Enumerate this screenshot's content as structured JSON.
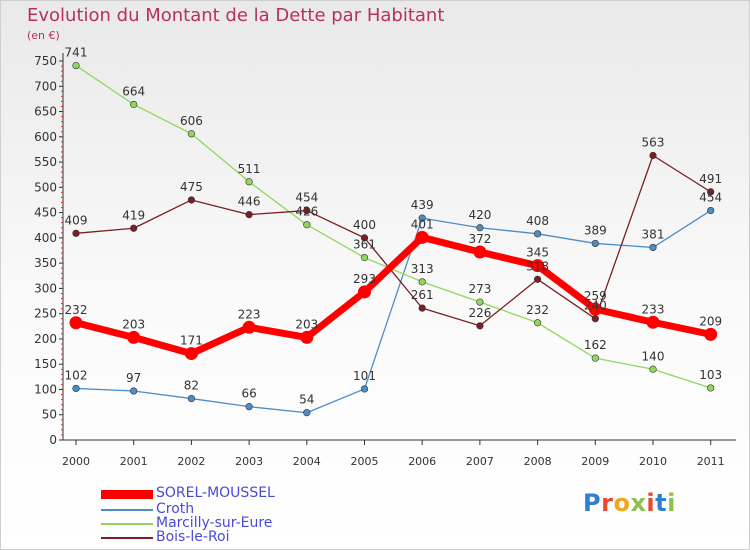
{
  "title": "Evolution du Montant de la Dette par Habitant",
  "unit": "(en €)",
  "brand": "Proxiti",
  "chart_data": {
    "type": "line",
    "categories": [
      "2000",
      "2001",
      "2002",
      "2003",
      "2004",
      "2005",
      "2006",
      "2007",
      "2008",
      "2009",
      "2010",
      "2011"
    ],
    "y_ticks": [
      0,
      50,
      100,
      150,
      200,
      250,
      300,
      350,
      400,
      450,
      500,
      550,
      600,
      650,
      700,
      750
    ],
    "ylim": [
      0,
      750
    ],
    "grid": false,
    "legend_position": "bottom-left",
    "series": [
      {
        "name": "SOREL-MOUSSEL",
        "color": "#ff0000",
        "values": [
          232,
          203,
          171,
          223,
          203,
          293,
          401,
          372,
          345,
          259,
          233,
          209
        ]
      },
      {
        "name": "Croth",
        "color": "#4c8dc6",
        "values": [
          102,
          97,
          82,
          66,
          54,
          101,
          439,
          420,
          408,
          389,
          381,
          454
        ]
      },
      {
        "name": "Marcilly-sur-Eure",
        "color": "#90d75c",
        "values": [
          741,
          664,
          606,
          511,
          426,
          361,
          313,
          273,
          232,
          162,
          140,
          103
        ]
      },
      {
        "name": "Bois-le-Roi",
        "color": "#7a1f24",
        "values": [
          409,
          419,
          475,
          446,
          454,
          400,
          261,
          226,
          318,
          240,
          563,
          491
        ]
      }
    ]
  }
}
